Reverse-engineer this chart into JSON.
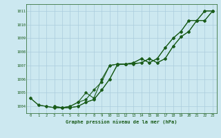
{
  "background_color": "#cce8f0",
  "grid_color": "#aaccdd",
  "line_color": "#1a5c1a",
  "xlabel": "Graphe pression niveau de la mer (hPa)",
  "xlim": [
    -0.5,
    23.5
  ],
  "ylim": [
    1003.5,
    1011.5
  ],
  "yticks": [
    1004,
    1005,
    1006,
    1007,
    1008,
    1009,
    1010,
    1011
  ],
  "xticks": [
    0,
    1,
    2,
    3,
    4,
    5,
    6,
    7,
    8,
    9,
    10,
    11,
    12,
    13,
    14,
    15,
    16,
    17,
    18,
    19,
    20,
    21,
    22,
    23
  ],
  "series1_x": [
    0,
    1,
    2,
    3,
    4,
    5,
    6,
    7,
    8,
    9,
    10,
    11,
    12,
    13,
    14,
    15,
    16,
    17,
    18,
    19,
    20,
    21,
    22,
    23
  ],
  "series1_y": [
    1004.6,
    1004.1,
    1004.0,
    1003.9,
    1003.9,
    1004.0,
    1004.3,
    1004.5,
    1005.2,
    1005.8,
    1007.0,
    1007.1,
    1007.1,
    1007.2,
    1007.5,
    1007.2,
    1007.5,
    1008.3,
    1009.0,
    1009.5,
    1010.3,
    1010.3,
    1011.0,
    1011.0
  ],
  "series2_x": [
    0,
    1,
    2,
    3,
    4,
    5,
    6,
    7,
    8,
    9,
    10,
    11,
    12,
    13,
    14,
    15,
    16,
    17,
    18,
    19,
    20,
    21,
    22,
    23
  ],
  "series2_y": [
    1004.6,
    1004.1,
    1004.0,
    1003.9,
    1003.9,
    1004.0,
    1004.3,
    1005.0,
    1004.6,
    1006.0,
    1007.0,
    1007.1,
    1007.1,
    1007.2,
    1007.5,
    1007.2,
    1007.5,
    1008.3,
    1009.0,
    1009.5,
    1010.3,
    1010.3,
    1011.0,
    1011.0
  ],
  "series3_x": [
    3,
    4,
    5,
    6,
    7,
    8,
    9,
    10,
    11,
    12,
    13,
    14,
    15,
    16,
    17,
    18,
    19,
    20,
    21,
    22,
    23
  ],
  "series3_y": [
    1004.0,
    1003.9,
    1003.9,
    1004.0,
    1004.3,
    1004.5,
    1005.2,
    1006.0,
    1007.1,
    1007.1,
    1007.15,
    1007.2,
    1007.5,
    1007.2,
    1007.5,
    1008.4,
    1009.1,
    1009.5,
    1010.3,
    1010.3,
    1011.0
  ],
  "series4_x": [
    3,
    4,
    5,
    6,
    7,
    8,
    9,
    10,
    11,
    12,
    13,
    14,
    15,
    16,
    17,
    18,
    19,
    20,
    21,
    22,
    23
  ],
  "series4_y": [
    1004.0,
    1003.9,
    1003.9,
    1004.0,
    1004.3,
    1004.5,
    1005.2,
    1006.0,
    1007.05,
    1007.1,
    1007.1,
    1007.2,
    1007.5,
    1007.2,
    1007.5,
    1008.4,
    1009.1,
    1009.5,
    1010.3,
    1010.3,
    1011.0
  ]
}
